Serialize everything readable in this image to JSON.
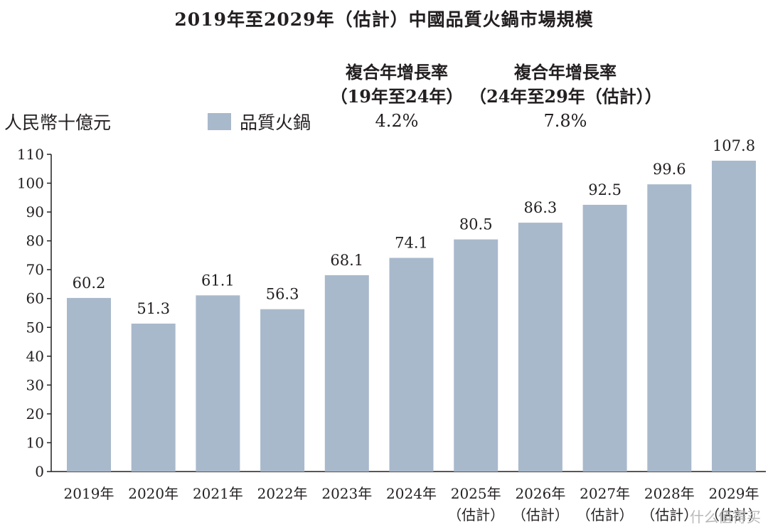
{
  "chart_data": {
    "type": "bar",
    "title": "2019年至2029年（估計）中國品質火鍋市場規模",
    "ylabel": "人民幣十億元",
    "legend": [
      "品質火鍋"
    ],
    "legend_placement": "top",
    "ylim": [
      0,
      110
    ],
    "yticks": [
      0,
      10,
      20,
      30,
      40,
      50,
      60,
      70,
      80,
      90,
      100,
      110
    ],
    "grid": false,
    "bar_color": "#a9b9cc",
    "categories": [
      {
        "year": "2019年",
        "note": ""
      },
      {
        "year": "2020年",
        "note": ""
      },
      {
        "year": "2021年",
        "note": ""
      },
      {
        "year": "2022年",
        "note": ""
      },
      {
        "year": "2023年",
        "note": ""
      },
      {
        "year": "2024年",
        "note": ""
      },
      {
        "year": "2025年",
        "note": "（估計）"
      },
      {
        "year": "2026年",
        "note": "（估計）"
      },
      {
        "year": "2027年",
        "note": "（估計）"
      },
      {
        "year": "2028年",
        "note": "（估計）"
      },
      {
        "year": "2029年",
        "note": "（估計）"
      }
    ],
    "series": [
      {
        "name": "品質火鍋",
        "values": [
          60.2,
          51.3,
          61.1,
          56.3,
          68.1,
          74.1,
          80.5,
          86.3,
          92.5,
          99.6,
          107.8
        ]
      }
    ],
    "value_labels": [
      "60.2",
      "51.3",
      "61.1",
      "56.3",
      "68.1",
      "74.1",
      "80.5",
      "86.3",
      "92.5",
      "99.6",
      "107.8"
    ],
    "annotations": {
      "cagr": [
        {
          "title": "複合年增長率",
          "period": "（19年至24年）",
          "value": "4.2%"
        },
        {
          "title": "複合年增長率",
          "period": "（24年至29年（估計））",
          "value": "7.8%"
        }
      ]
    }
  },
  "watermark": "什么值得买"
}
